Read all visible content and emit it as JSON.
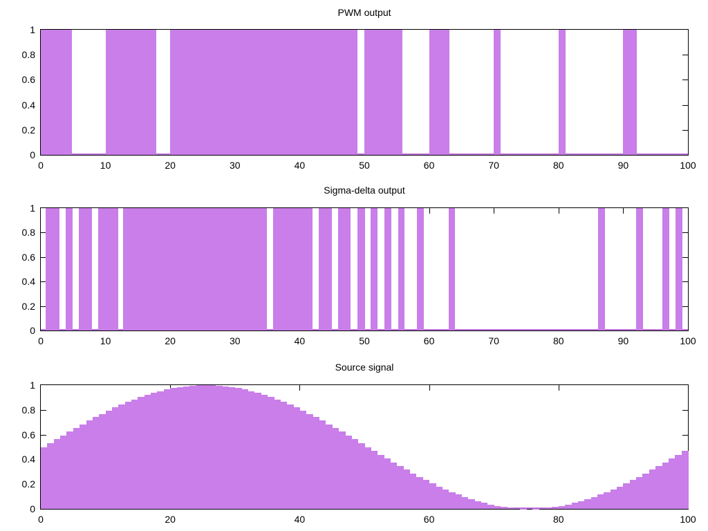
{
  "figure": {
    "background_color": "#ffffff",
    "axis_color": "#000000",
    "text_color": "#000000",
    "fill_color": "#c97ee9",
    "baseline_color": "#bd6fdd"
  },
  "chart_data": [
    {
      "type": "bar",
      "subtype": "binary-pulse-train",
      "title": "PWM output",
      "xlabel": "",
      "ylabel": "",
      "x_range": [
        0,
        100
      ],
      "y_range": [
        0,
        1
      ],
      "xticks": [
        0,
        10,
        20,
        30,
        40,
        50,
        60,
        70,
        80,
        90,
        100
      ],
      "yticks": [
        {
          "value": 0,
          "label": "0"
        },
        {
          "value": 0.2,
          "label": "0.2"
        },
        {
          "value": 0.4,
          "label": "0.4"
        },
        {
          "value": 0.6,
          "label": "0.6"
        },
        {
          "value": 0.8,
          "label": "0.8"
        },
        {
          "value": 1,
          "label": "1"
        }
      ],
      "grid": false,
      "legend": "none",
      "high_intervals": [
        [
          0,
          4.8
        ],
        [
          10,
          17.8
        ],
        [
          20,
          48.9
        ],
        [
          50,
          55.9
        ],
        [
          60,
          63.1
        ],
        [
          70,
          71.1
        ],
        [
          80,
          81.1
        ],
        [
          90,
          92.1
        ]
      ]
    },
    {
      "type": "bar",
      "subtype": "binary-pulse-train",
      "title": "Sigma-delta output",
      "xlabel": "",
      "ylabel": "",
      "x_range": [
        0,
        100
      ],
      "y_range": [
        0,
        1
      ],
      "xticks": [
        0,
        10,
        20,
        30,
        40,
        50,
        60,
        70,
        80,
        90,
        100
      ],
      "yticks": [
        {
          "value": 0,
          "label": "0"
        },
        {
          "value": 0.2,
          "label": "0.2"
        },
        {
          "value": 0.4,
          "label": "0.4"
        },
        {
          "value": 0.6,
          "label": "0.6"
        },
        {
          "value": 0.8,
          "label": "0.8"
        },
        {
          "value": 1,
          "label": "1"
        }
      ],
      "grid": false,
      "legend": "none",
      "high_intervals": [
        [
          0.8,
          2.9
        ],
        [
          3.8,
          4.9
        ],
        [
          5.9,
          7.9
        ],
        [
          8.9,
          12.0
        ],
        [
          12.7,
          34.9
        ],
        [
          35.9,
          42.0
        ],
        [
          42.9,
          45.0
        ],
        [
          45.9,
          47.9
        ],
        [
          48.9,
          50.1
        ],
        [
          51.0,
          52.0
        ],
        [
          53.1,
          54.2
        ],
        [
          55.2,
          56.2
        ],
        [
          58.1,
          59.2
        ],
        [
          63.0,
          64.0
        ],
        [
          86.1,
          87.2
        ],
        [
          92.0,
          93.1
        ],
        [
          96.1,
          97.1
        ],
        [
          98.1,
          99.2
        ]
      ]
    },
    {
      "type": "area",
      "subtype": "step-histogram",
      "title": "Source signal",
      "xlabel": "",
      "ylabel": "",
      "x_range": [
        0,
        100
      ],
      "y_range": [
        0,
        1
      ],
      "xticks": [
        0,
        20,
        40,
        60,
        80,
        100
      ],
      "yticks": [
        {
          "value": 0,
          "label": "0"
        },
        {
          "value": 0.2,
          "label": "0.2"
        },
        {
          "value": 0.4,
          "label": "0.4"
        },
        {
          "value": 0.6,
          "label": "0.6"
        },
        {
          "value": 0.8,
          "label": "0.8"
        },
        {
          "value": 1,
          "label": "1"
        }
      ],
      "grid": false,
      "legend": "none",
      "x_step": 1,
      "values": [
        0.5,
        0.531,
        0.563,
        0.594,
        0.624,
        0.655,
        0.684,
        0.713,
        0.741,
        0.768,
        0.794,
        0.819,
        0.842,
        0.864,
        0.885,
        0.905,
        0.922,
        0.938,
        0.952,
        0.965,
        0.976,
        0.984,
        0.991,
        0.996,
        0.999,
        1.0,
        0.999,
        0.996,
        0.991,
        0.984,
        0.976,
        0.965,
        0.952,
        0.938,
        0.922,
        0.905,
        0.885,
        0.864,
        0.842,
        0.819,
        0.794,
        0.768,
        0.741,
        0.713,
        0.684,
        0.655,
        0.624,
        0.594,
        0.563,
        0.531,
        0.5,
        0.469,
        0.437,
        0.406,
        0.376,
        0.345,
        0.316,
        0.287,
        0.259,
        0.232,
        0.206,
        0.181,
        0.158,
        0.136,
        0.115,
        0.095,
        0.078,
        0.062,
        0.048,
        0.035,
        0.024,
        0.016,
        0.009,
        0.004,
        0.001,
        0.0,
        0.001,
        0.004,
        0.009,
        0.016,
        0.024,
        0.035,
        0.048,
        0.062,
        0.078,
        0.095,
        0.115,
        0.136,
        0.158,
        0.181,
        0.206,
        0.232,
        0.259,
        0.287,
        0.316,
        0.345,
        0.376,
        0.406,
        0.437,
        0.469
      ]
    }
  ]
}
